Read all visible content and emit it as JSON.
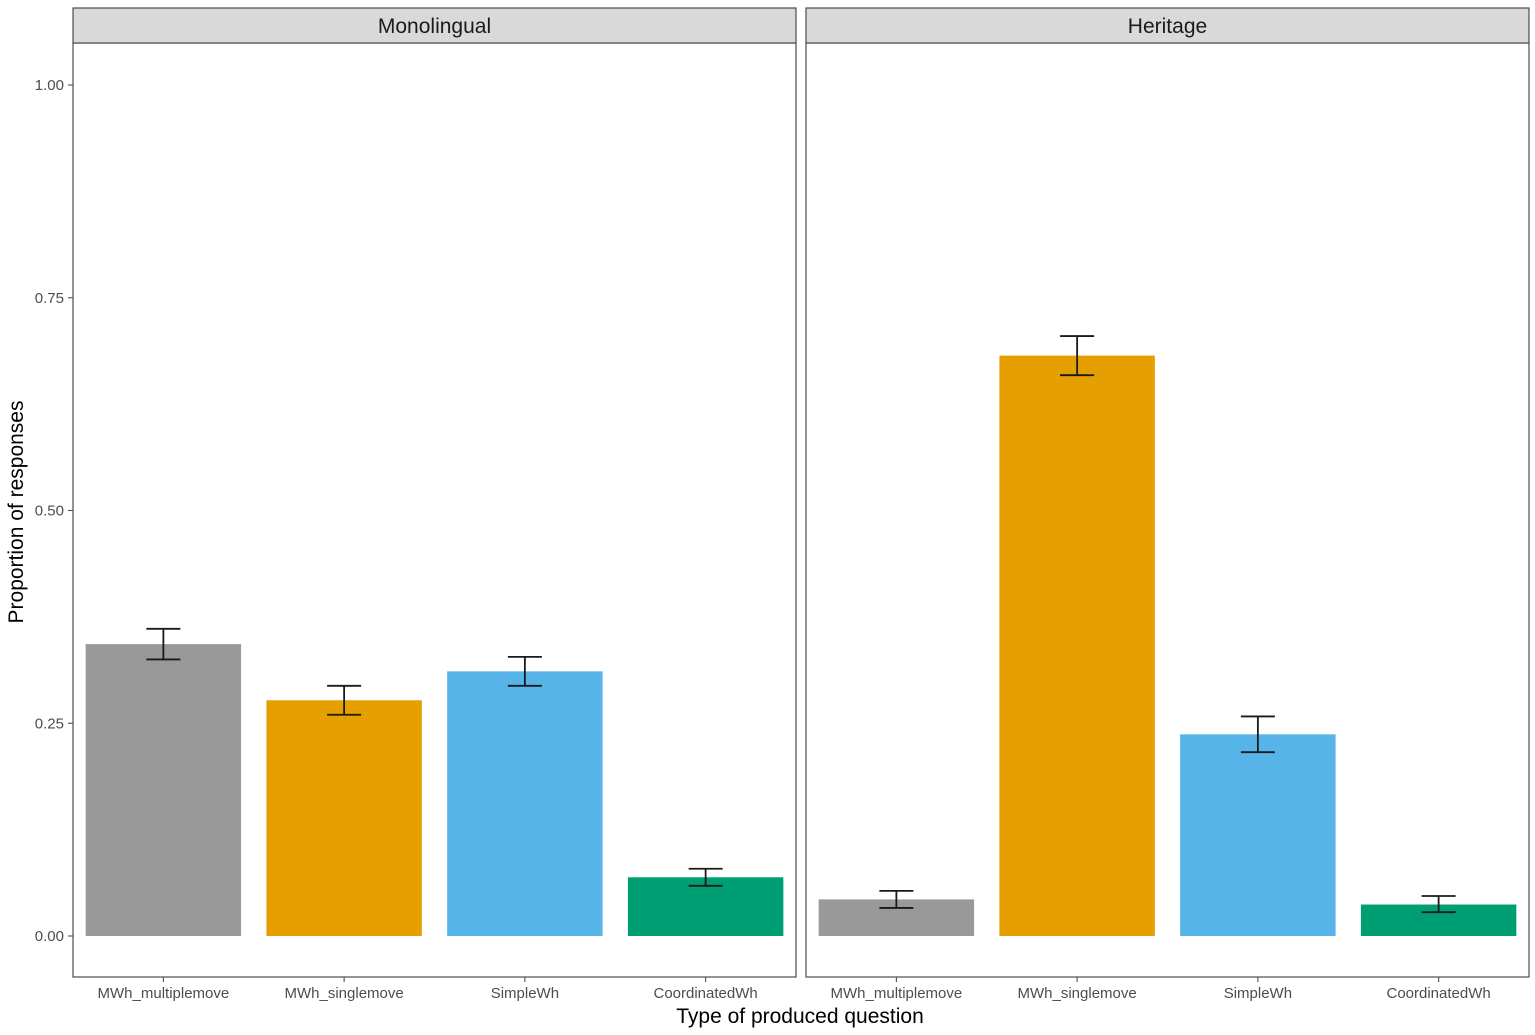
{
  "chart_data": {
    "type": "bar",
    "xlabel": "Type of produced question",
    "ylabel": "Proportion of responses",
    "ylim": [
      0,
      1.05
    ],
    "yticks": [
      "0.00",
      "0.25",
      "0.50",
      "0.75",
      "1.00"
    ],
    "categories": [
      "MWh_multiplemove",
      "MWh_singlemove",
      "SimpleWh",
      "CoordinatedWh"
    ],
    "colors": [
      "#999999",
      "#E69F00",
      "#56B4E9",
      "#009E73"
    ],
    "grid": false,
    "legend": "none",
    "panels": [
      {
        "name": "Monolingual",
        "values": [
          0.343,
          0.277,
          0.311,
          0.069
        ],
        "error_low": [
          0.325,
          0.26,
          0.294,
          0.059
        ],
        "error_high": [
          0.361,
          0.294,
          0.328,
          0.079
        ]
      },
      {
        "name": "Heritage",
        "values": [
          0.043,
          0.682,
          0.237,
          0.037
        ],
        "error_low": [
          0.033,
          0.659,
          0.216,
          0.028
        ],
        "error_high": [
          0.053,
          0.705,
          0.258,
          0.047
        ]
      }
    ]
  }
}
